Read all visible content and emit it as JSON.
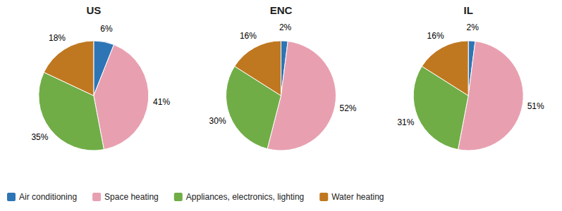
{
  "chart_data": [
    {
      "type": "pie",
      "title": "US",
      "categories": [
        "Air conditioning",
        "Space heating",
        "Appliances, electronics, lighting",
        "Water heating"
      ],
      "values": [
        6,
        41,
        35,
        18
      ],
      "value_labels": [
        "6%",
        "41%",
        "35%",
        "18%"
      ],
      "colors": [
        "#2E75B6",
        "#E8A0B0",
        "#70AD47",
        "#C07820"
      ],
      "data_labels": true,
      "legend": "lower left"
    },
    {
      "type": "pie",
      "title": "ENC",
      "categories": [
        "Air conditioning",
        "Space heating",
        "Appliances, electronics, lighting",
        "Water heating"
      ],
      "values": [
        2,
        52,
        30,
        16
      ],
      "value_labels": [
        "2%",
        "52%",
        "30%",
        "16%"
      ],
      "colors": [
        "#2E75B6",
        "#E8A0B0",
        "#70AD47",
        "#C07820"
      ],
      "data_labels": true
    },
    {
      "type": "pie",
      "title": "IL",
      "categories": [
        "Air conditioning",
        "Space heating",
        "Appliances, electronics, lighting",
        "Water heating"
      ],
      "values": [
        2,
        51,
        31,
        16
      ],
      "value_labels": [
        "2%",
        "51%",
        "31%",
        "16%"
      ],
      "colors": [
        "#2E75B6",
        "#E8A0B0",
        "#70AD47",
        "#C07820"
      ],
      "data_labels": true
    }
  ]
}
